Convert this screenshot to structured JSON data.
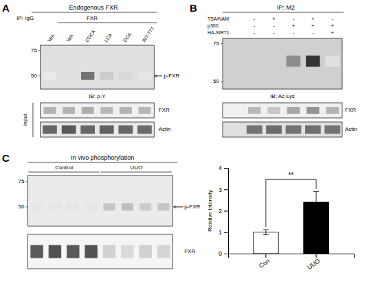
{
  "chart_data": [
    {
      "type": "blot",
      "title": "Endogenous  FXR",
      "annotations": [
        "A",
        "IP: IgG",
        "FXR",
        "p-FXR",
        "Input"
      ],
      "categories": [
        "Veh",
        "Veh",
        "CDCA",
        "LCA",
        "DCA",
        "INT-777"
      ],
      "mw_markers": [
        75,
        50
      ],
      "series": [
        {
          "name": "IB: p-Y",
          "color": "#e0e0e0",
          "values": [
            0.08,
            0.12,
            0.55,
            0.2,
            0.15,
            0.1
          ]
        },
        {
          "name": "FXR",
          "color": "#f0f0f0",
          "values": [
            0.3,
            0.3,
            0.32,
            0.28,
            0.3,
            0.28
          ]
        },
        {
          "name": "Actin",
          "color": "#e8e8e8",
          "values": [
            0.6,
            0.65,
            0.6,
            0.62,
            0.6,
            0.58
          ]
        }
      ]
    },
    {
      "type": "blot",
      "title": "IP: M2",
      "annotations": [
        "B"
      ],
      "conditions": [
        {
          "name": "TSA/NAM",
          "values": [
            "-",
            "+",
            "-",
            "+",
            "-"
          ]
        },
        {
          "name": "p300",
          "values": [
            "-",
            "-",
            "+",
            "+",
            "+"
          ]
        },
        {
          "name": "HA-SIRT1",
          "values": [
            "-",
            "-",
            "-",
            "-",
            "+"
          ]
        }
      ],
      "mw_markers": [
        75,
        50
      ],
      "series": [
        {
          "name": "IB: Ac-Lys",
          "color": "#d0d0d0",
          "values": [
            0.0,
            0.0,
            0.45,
            0.8,
            0.12
          ]
        },
        {
          "name": "FXR",
          "color": "#f0f0f0",
          "values": [
            0.28,
            0.22,
            0.35,
            0.42,
            0.3
          ]
        },
        {
          "name": "Actin",
          "color": "#e0e0e0",
          "values": [
            0.55,
            0.58,
            0.55,
            0.57,
            0.55
          ]
        }
      ]
    },
    {
      "type": "blot",
      "title": "In vivo  phosphorylation",
      "annotations": [
        "C"
      ],
      "group_labels": [
        "Control",
        "UUO"
      ],
      "group_sizes": [
        4,
        4
      ],
      "mw_markers": [
        75,
        50
      ],
      "series": [
        {
          "name": "p-FXR",
          "color": "#ebebeb",
          "values": [
            0.1,
            0.1,
            0.1,
            0.1,
            0.22,
            0.25,
            0.2,
            0.22
          ]
        },
        {
          "name": "FXR",
          "color": "#f5f5f5",
          "values": [
            0.65,
            0.68,
            0.65,
            0.67,
            0.18,
            0.15,
            0.18,
            0.17
          ]
        }
      ]
    },
    {
      "type": "bar",
      "categories": [
        "Con",
        "UUO"
      ],
      "values": [
        1.0,
        2.4
      ],
      "errors": [
        0.12,
        0.5
      ],
      "colors": [
        "white",
        "black"
      ],
      "y_label": "Relative Intensity",
      "ylim": [
        0,
        4
      ],
      "yticks": [
        0,
        1,
        2,
        3,
        4
      ],
      "annotations": [
        "**"
      ]
    }
  ]
}
